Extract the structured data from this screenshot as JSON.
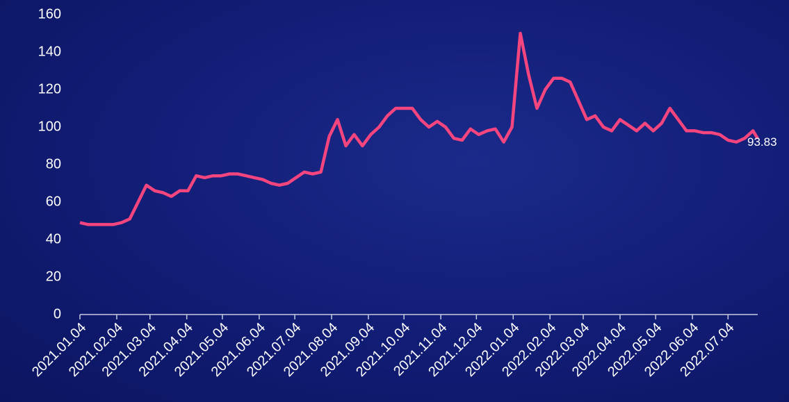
{
  "chart_data": {
    "type": "line",
    "x": [
      "2021.01.04",
      "2021.01.11",
      "2021.01.18",
      "2021.01.25",
      "2021.02.01",
      "2021.02.08",
      "2021.02.15",
      "2021.02.22",
      "2021.03.01",
      "2021.03.08",
      "2021.03.15",
      "2021.03.22",
      "2021.03.29",
      "2021.04.05",
      "2021.04.12",
      "2021.04.19",
      "2021.04.26",
      "2021.05.03",
      "2021.05.10",
      "2021.05.17",
      "2021.05.24",
      "2021.05.31",
      "2021.06.07",
      "2021.06.14",
      "2021.06.21",
      "2021.06.28",
      "2021.07.05",
      "2021.07.12",
      "2021.07.19",
      "2021.07.26",
      "2021.08.02",
      "2021.08.09",
      "2021.08.16",
      "2021.08.23",
      "2021.08.30",
      "2021.09.06",
      "2021.09.13",
      "2021.09.20",
      "2021.09.27",
      "2021.10.04",
      "2021.10.11",
      "2021.10.18",
      "2021.10.25",
      "2021.11.01",
      "2021.11.08",
      "2021.11.15",
      "2021.11.22",
      "2021.11.29",
      "2021.12.06",
      "2021.12.13",
      "2021.12.20",
      "2021.12.27",
      "2022.01.03",
      "2022.01.10",
      "2022.01.17",
      "2022.01.24",
      "2022.01.31",
      "2022.02.07",
      "2022.02.14",
      "2022.02.21",
      "2022.02.28",
      "2022.03.07",
      "2022.03.14",
      "2022.03.21",
      "2022.03.28",
      "2022.04.04",
      "2022.04.11",
      "2022.04.18",
      "2022.04.25",
      "2022.05.02",
      "2022.05.09",
      "2022.05.16",
      "2022.05.23",
      "2022.05.30",
      "2022.06.06",
      "2022.06.13",
      "2022.06.20",
      "2022.06.27",
      "2022.07.04",
      "2022.07.11",
      "2022.07.18",
      "2022.07.25",
      "2022.07.29"
    ],
    "series": [
      {
        "color": "#f4457f",
        "values": [
          49,
          48,
          48,
          48,
          48,
          49,
          51,
          60,
          69,
          66,
          65,
          63,
          66,
          66,
          74,
          73,
          74,
          74,
          75,
          75,
          74,
          73,
          72,
          70,
          69,
          70,
          73,
          76,
          75,
          76,
          95,
          104,
          90,
          96,
          90,
          96,
          100,
          106,
          110,
          110,
          110,
          104,
          100,
          103,
          100,
          94,
          93,
          99,
          96,
          98,
          99,
          92,
          100,
          150,
          128,
          110,
          120,
          126,
          126,
          124,
          114,
          104,
          106,
          100,
          98,
          104,
          101,
          98,
          102,
          98,
          102,
          110,
          104,
          98,
          98,
          97,
          97,
          96,
          93,
          92,
          94,
          98,
          93.83
        ]
      }
    ],
    "xlim": [
      "2021.01.04",
      "2022.07.29"
    ],
    "xticks": [
      "2021.01.04",
      "2021.02.04",
      "2021.03.04",
      "2021.04.04",
      "2021.05.04",
      "2021.06.04",
      "2021.07.04",
      "2021.08.04",
      "2021.09.04",
      "2021.10.04",
      "2021.11.04",
      "2021.12.04",
      "2022.01.04",
      "2022.02.04",
      "2022.03.04",
      "2022.04.04",
      "2022.05.04",
      "2022.06.04",
      "2022.07.04"
    ],
    "ylim": [
      0,
      160
    ],
    "yticks": [
      0,
      20,
      40,
      60,
      80,
      100,
      120,
      140,
      160
    ]
  }
}
